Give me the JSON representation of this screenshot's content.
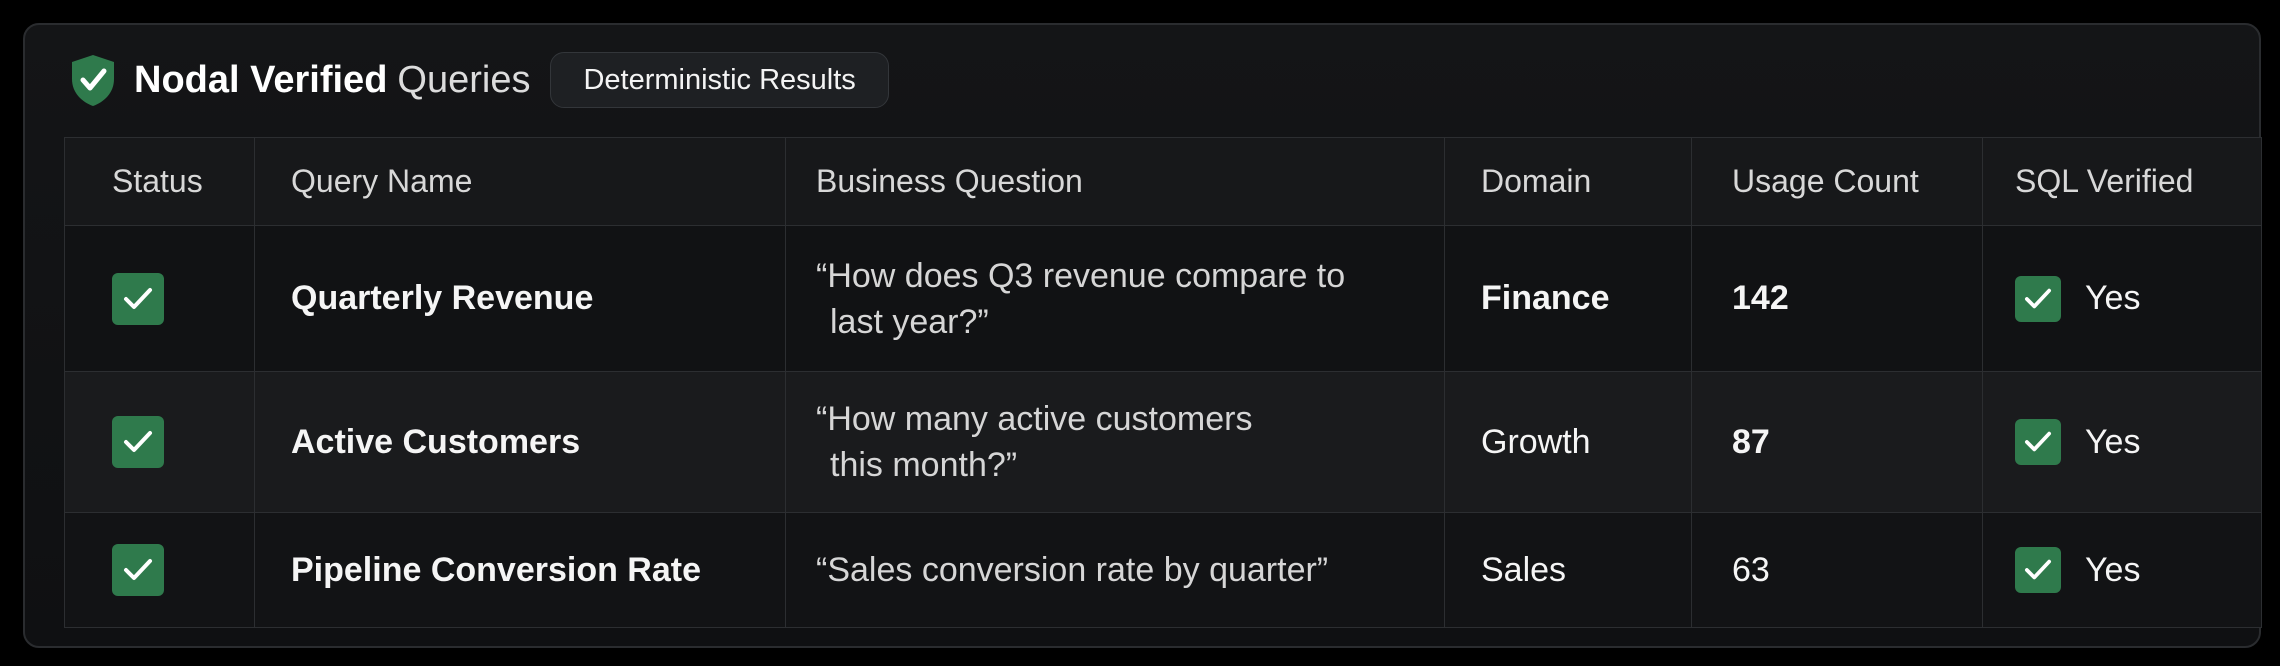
{
  "header": {
    "icon": "shield-check-icon",
    "title_strong": "Nodal Verified",
    "title_light": "Queries",
    "badge": "Deterministic Results"
  },
  "colors": {
    "accent_green": "#2f7a4c",
    "background": "#0f1012"
  },
  "table": {
    "columns": [
      "Status",
      "Query Name",
      "Business Question",
      "Domain",
      "Usage Count",
      "SQL Verified"
    ],
    "rows": [
      {
        "status": "verified",
        "name": "Quarterly Revenue",
        "q1": "“How does Q3 revenue compare to",
        "q2": "last year?”",
        "domain": "Finance",
        "usage": "142",
        "sql": "Yes"
      },
      {
        "status": "verified",
        "name": "Active Customers",
        "q1": "“How many active customers",
        "q2": "this month?”",
        "domain": "Growth",
        "usage": "87",
        "sql": "Yes"
      },
      {
        "status": "verified",
        "name": "Pipeline Conversion Rate",
        "q1": "“Sales conversion rate by quarter”",
        "q2": "",
        "domain": "Sales",
        "usage": "63",
        "sql": "Yes"
      }
    ]
  }
}
